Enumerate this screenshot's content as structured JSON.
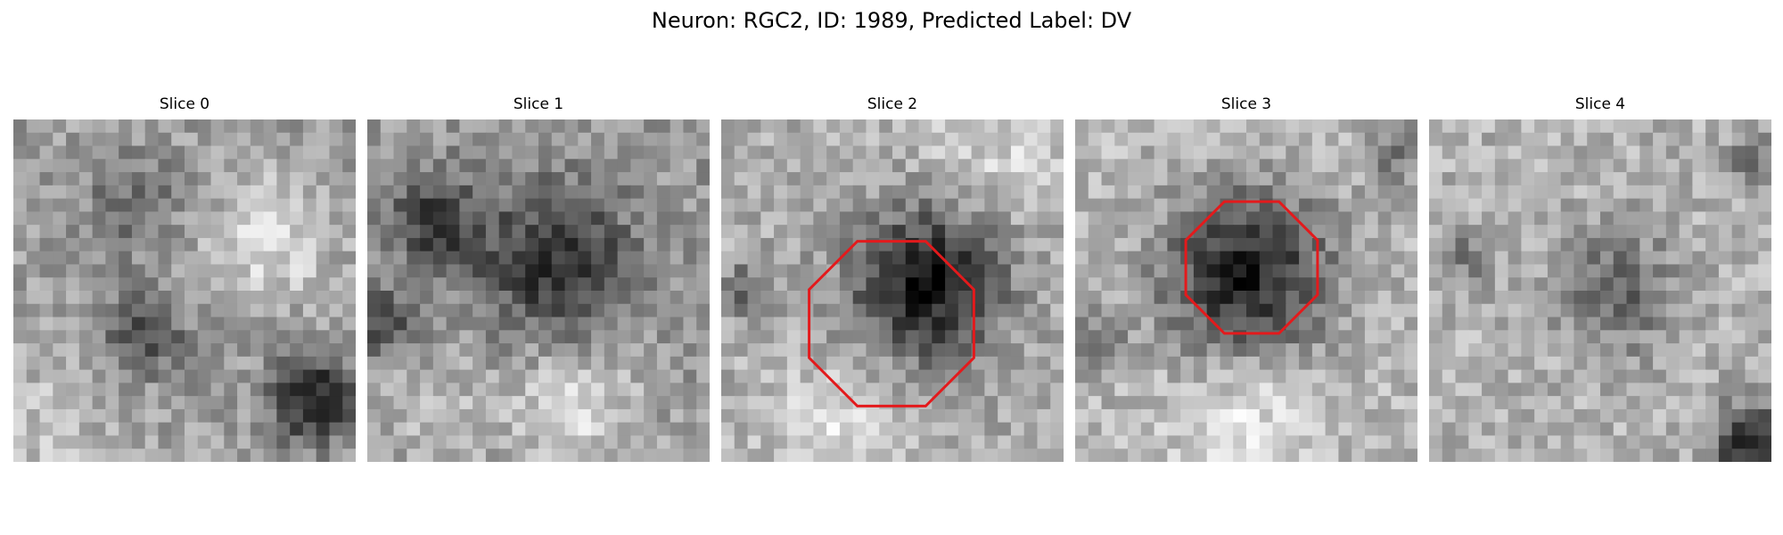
{
  "figure": {
    "title": "Neuron: RGC2, ID: 1989, Predicted Label: DV"
  },
  "panels": [
    {
      "title": "Slice 0",
      "pattern": "blotchy-gray-dark-lower-right",
      "roi": null
    },
    {
      "title": "Slice 1",
      "pattern": "dark-band-across-middle",
      "roi": null
    },
    {
      "title": "Slice 2",
      "pattern": "dark-soma-center-right",
      "roi": "octagon"
    },
    {
      "title": "Slice 3",
      "pattern": "dark-soma-center",
      "roi": "octagon"
    },
    {
      "title": "Slice 4",
      "pattern": "faint-dark-center-dark-lower-right",
      "roi": null
    }
  ],
  "colors": {
    "roi_outline": "#e31a1c",
    "colormap": "gray"
  }
}
